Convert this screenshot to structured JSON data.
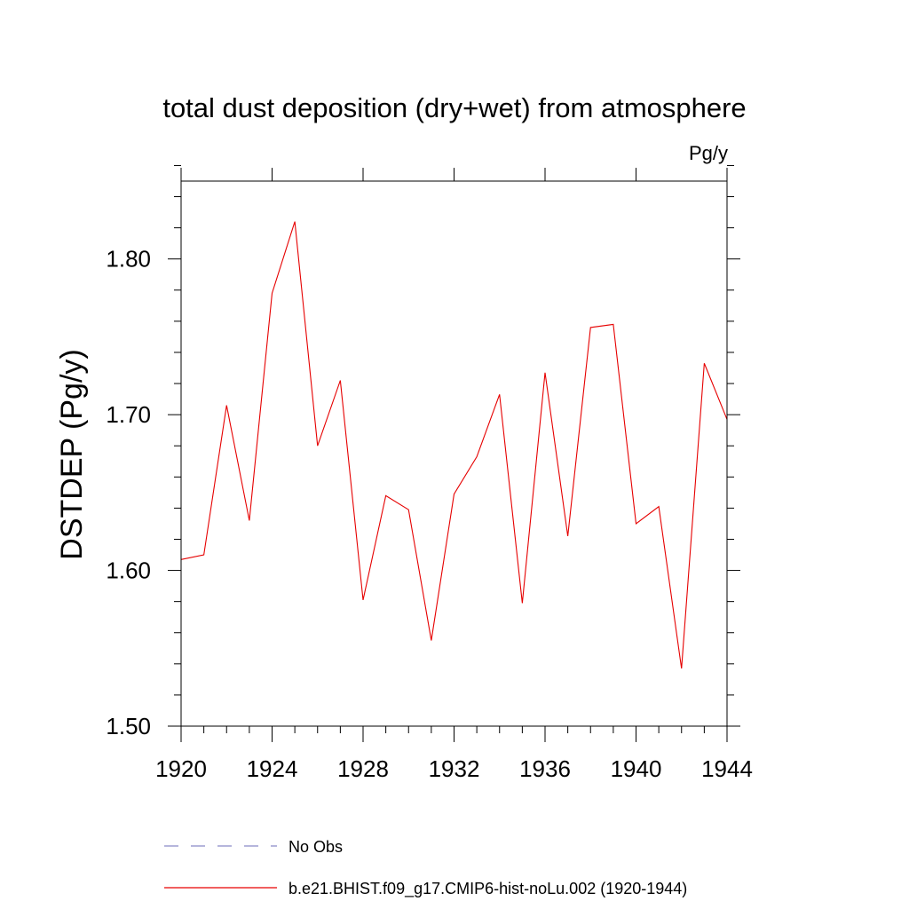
{
  "chart_data": {
    "type": "line",
    "title": "total dust deposition (dry+wet) from atmosphere",
    "units_label": "Pg/y",
    "ylabel": "DSTDEP  (Pg/y)",
    "xlabel": "",
    "xlim": [
      1920,
      1944
    ],
    "ylim": [
      1.5,
      1.85
    ],
    "x_ticks": [
      1920,
      1924,
      1928,
      1932,
      1936,
      1940,
      1944
    ],
    "x_tick_labels": [
      "1920",
      "1924",
      "1928",
      "1932",
      "1936",
      "1940",
      "1944"
    ],
    "y_ticks": [
      1.5,
      1.6,
      1.7,
      1.8
    ],
    "y_tick_labels": [
      "1.50",
      "1.60",
      "1.70",
      "1.80"
    ],
    "grid": false,
    "series": [
      {
        "name": "b.e21.BHIST.f09_g17.CMIP6-hist-noLu.002 (1920-1944)",
        "color": "#e60000",
        "style": "solid",
        "x": [
          1920,
          1921,
          1922,
          1923,
          1924,
          1925,
          1926,
          1927,
          1928,
          1929,
          1930,
          1931,
          1932,
          1933,
          1934,
          1935,
          1936,
          1937,
          1938,
          1939,
          1940,
          1941,
          1942,
          1943,
          1944
        ],
        "values": [
          1.607,
          1.61,
          1.706,
          1.632,
          1.778,
          1.824,
          1.68,
          1.722,
          1.581,
          1.648,
          1.639,
          1.555,
          1.649,
          1.673,
          1.713,
          1.579,
          1.727,
          1.622,
          1.756,
          1.758,
          1.63,
          1.641,
          1.537,
          1.733,
          1.697
        ]
      }
    ],
    "legend": [
      {
        "label": "No Obs",
        "color": "#8a8ac8",
        "style": "dashed"
      },
      {
        "label": "b.e21.BHIST.f09_g17.CMIP6-hist-noLu.002 (1920-1944)",
        "color": "#e60000",
        "style": "solid"
      }
    ],
    "legend_position": "bottom"
  }
}
